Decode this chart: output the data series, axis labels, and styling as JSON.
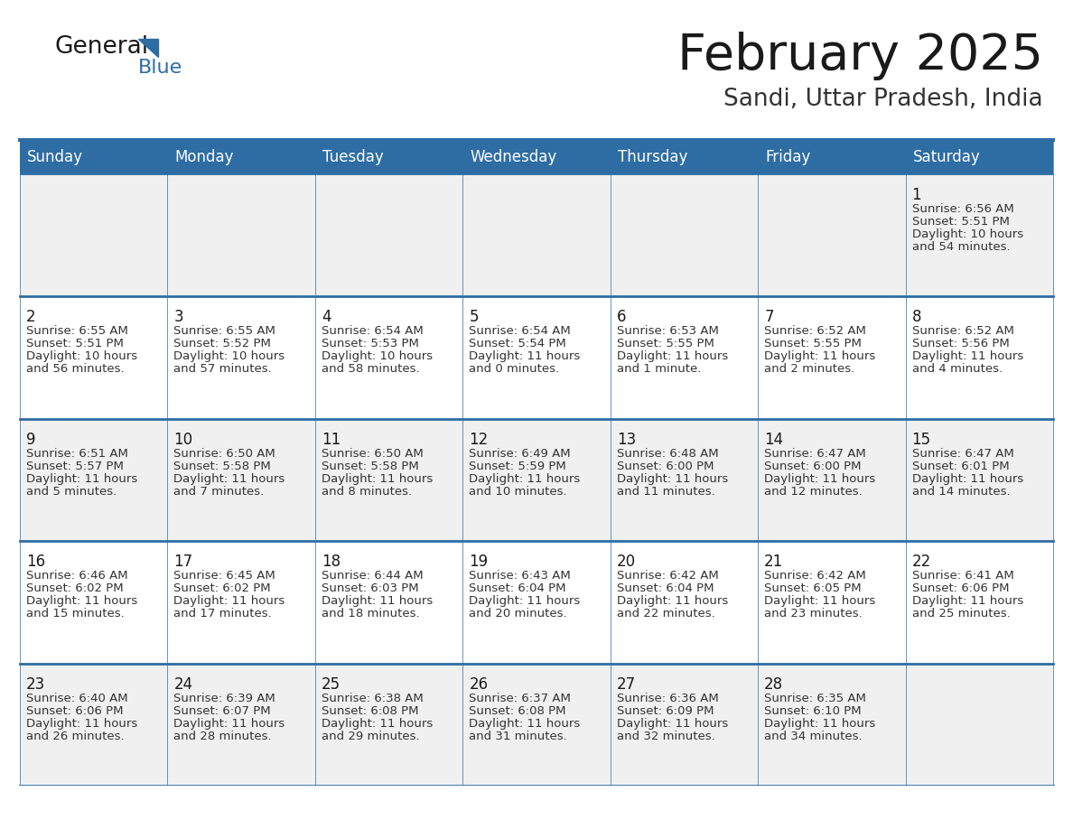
{
  "title": "February 2025",
  "subtitle": "Sandi, Uttar Pradesh, India",
  "header_bg_color": "#2E6DA4",
  "header_text_color": "#FFFFFF",
  "day_headers": [
    "Sunday",
    "Monday",
    "Tuesday",
    "Wednesday",
    "Thursday",
    "Friday",
    "Saturday"
  ],
  "bg_color": "#FFFFFF",
  "row_even_color": "#F0F0F0",
  "row_odd_color": "#FFFFFF",
  "cell_border_color": "#2E6DA4",
  "title_color": "#1a1a1a",
  "subtitle_color": "#333333",
  "day_num_color": "#1a1a1a",
  "cell_text_color": "#333333",
  "logo_general_color": "#1a1a1a",
  "logo_blue_color": "#2E6DA4",
  "calendar_data": {
    "1": {
      "row": 0,
      "col": 6,
      "sunrise": "6:56 AM",
      "sunset": "5:51 PM",
      "daylight_l1": "10 hours",
      "daylight_l2": "and 54 minutes."
    },
    "2": {
      "row": 1,
      "col": 0,
      "sunrise": "6:55 AM",
      "sunset": "5:51 PM",
      "daylight_l1": "10 hours",
      "daylight_l2": "and 56 minutes."
    },
    "3": {
      "row": 1,
      "col": 1,
      "sunrise": "6:55 AM",
      "sunset": "5:52 PM",
      "daylight_l1": "10 hours",
      "daylight_l2": "and 57 minutes."
    },
    "4": {
      "row": 1,
      "col": 2,
      "sunrise": "6:54 AM",
      "sunset": "5:53 PM",
      "daylight_l1": "10 hours",
      "daylight_l2": "and 58 minutes."
    },
    "5": {
      "row": 1,
      "col": 3,
      "sunrise": "6:54 AM",
      "sunset": "5:54 PM",
      "daylight_l1": "11 hours",
      "daylight_l2": "and 0 minutes."
    },
    "6": {
      "row": 1,
      "col": 4,
      "sunrise": "6:53 AM",
      "sunset": "5:55 PM",
      "daylight_l1": "11 hours",
      "daylight_l2": "and 1 minute."
    },
    "7": {
      "row": 1,
      "col": 5,
      "sunrise": "6:52 AM",
      "sunset": "5:55 PM",
      "daylight_l1": "11 hours",
      "daylight_l2": "and 2 minutes."
    },
    "8": {
      "row": 1,
      "col": 6,
      "sunrise": "6:52 AM",
      "sunset": "5:56 PM",
      "daylight_l1": "11 hours",
      "daylight_l2": "and 4 minutes."
    },
    "9": {
      "row": 2,
      "col": 0,
      "sunrise": "6:51 AM",
      "sunset": "5:57 PM",
      "daylight_l1": "11 hours",
      "daylight_l2": "and 5 minutes."
    },
    "10": {
      "row": 2,
      "col": 1,
      "sunrise": "6:50 AM",
      "sunset": "5:58 PM",
      "daylight_l1": "11 hours",
      "daylight_l2": "and 7 minutes."
    },
    "11": {
      "row": 2,
      "col": 2,
      "sunrise": "6:50 AM",
      "sunset": "5:58 PM",
      "daylight_l1": "11 hours",
      "daylight_l2": "and 8 minutes."
    },
    "12": {
      "row": 2,
      "col": 3,
      "sunrise": "6:49 AM",
      "sunset": "5:59 PM",
      "daylight_l1": "11 hours",
      "daylight_l2": "and 10 minutes."
    },
    "13": {
      "row": 2,
      "col": 4,
      "sunrise": "6:48 AM",
      "sunset": "6:00 PM",
      "daylight_l1": "11 hours",
      "daylight_l2": "and 11 minutes."
    },
    "14": {
      "row": 2,
      "col": 5,
      "sunrise": "6:47 AM",
      "sunset": "6:00 PM",
      "daylight_l1": "11 hours",
      "daylight_l2": "and 12 minutes."
    },
    "15": {
      "row": 2,
      "col": 6,
      "sunrise": "6:47 AM",
      "sunset": "6:01 PM",
      "daylight_l1": "11 hours",
      "daylight_l2": "and 14 minutes."
    },
    "16": {
      "row": 3,
      "col": 0,
      "sunrise": "6:46 AM",
      "sunset": "6:02 PM",
      "daylight_l1": "11 hours",
      "daylight_l2": "and 15 minutes."
    },
    "17": {
      "row": 3,
      "col": 1,
      "sunrise": "6:45 AM",
      "sunset": "6:02 PM",
      "daylight_l1": "11 hours",
      "daylight_l2": "and 17 minutes."
    },
    "18": {
      "row": 3,
      "col": 2,
      "sunrise": "6:44 AM",
      "sunset": "6:03 PM",
      "daylight_l1": "11 hours",
      "daylight_l2": "and 18 minutes."
    },
    "19": {
      "row": 3,
      "col": 3,
      "sunrise": "6:43 AM",
      "sunset": "6:04 PM",
      "daylight_l1": "11 hours",
      "daylight_l2": "and 20 minutes."
    },
    "20": {
      "row": 3,
      "col": 4,
      "sunrise": "6:42 AM",
      "sunset": "6:04 PM",
      "daylight_l1": "11 hours",
      "daylight_l2": "and 22 minutes."
    },
    "21": {
      "row": 3,
      "col": 5,
      "sunrise": "6:42 AM",
      "sunset": "6:05 PM",
      "daylight_l1": "11 hours",
      "daylight_l2": "and 23 minutes."
    },
    "22": {
      "row": 3,
      "col": 6,
      "sunrise": "6:41 AM",
      "sunset": "6:06 PM",
      "daylight_l1": "11 hours",
      "daylight_l2": "and 25 minutes."
    },
    "23": {
      "row": 4,
      "col": 0,
      "sunrise": "6:40 AM",
      "sunset": "6:06 PM",
      "daylight_l1": "11 hours",
      "daylight_l2": "and 26 minutes."
    },
    "24": {
      "row": 4,
      "col": 1,
      "sunrise": "6:39 AM",
      "sunset": "6:07 PM",
      "daylight_l1": "11 hours",
      "daylight_l2": "and 28 minutes."
    },
    "25": {
      "row": 4,
      "col": 2,
      "sunrise": "6:38 AM",
      "sunset": "6:08 PM",
      "daylight_l1": "11 hours",
      "daylight_l2": "and 29 minutes."
    },
    "26": {
      "row": 4,
      "col": 3,
      "sunrise": "6:37 AM",
      "sunset": "6:08 PM",
      "daylight_l1": "11 hours",
      "daylight_l2": "and 31 minutes."
    },
    "27": {
      "row": 4,
      "col": 4,
      "sunrise": "6:36 AM",
      "sunset": "6:09 PM",
      "daylight_l1": "11 hours",
      "daylight_l2": "and 32 minutes."
    },
    "28": {
      "row": 4,
      "col": 5,
      "sunrise": "6:35 AM",
      "sunset": "6:10 PM",
      "daylight_l1": "11 hours",
      "daylight_l2": "and 34 minutes."
    }
  }
}
